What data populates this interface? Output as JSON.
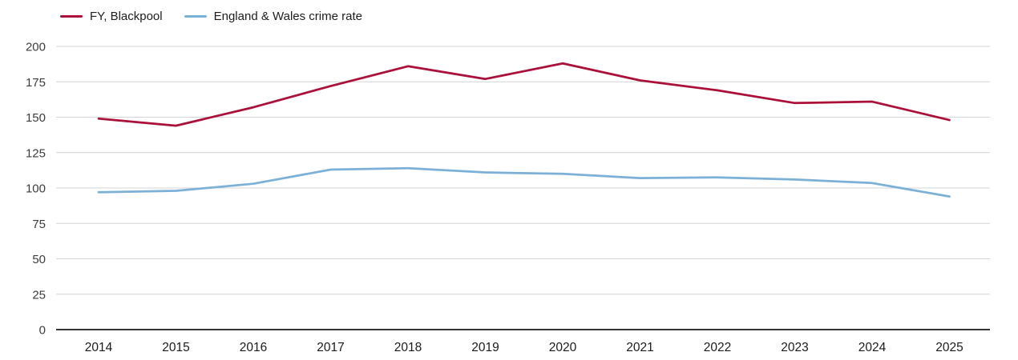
{
  "chart_data": {
    "type": "line",
    "x": [
      2014,
      2015,
      2016,
      2017,
      2018,
      2019,
      2020,
      2021,
      2022,
      2023,
      2024,
      2025
    ],
    "series": [
      {
        "name": "FY, Blackpool",
        "color": "#aa1039",
        "values": [
          149,
          144,
          157,
          172,
          186,
          177,
          188,
          176,
          169,
          160,
          161,
          148
        ]
      },
      {
        "name": "England & Wales crime rate",
        "color": "#7cb1d7",
        "values": [
          97,
          98,
          103,
          113,
          114,
          111,
          110,
          107,
          107.5,
          106,
          103.5,
          94
        ]
      }
    ],
    "title": "",
    "xlabel": "",
    "ylabel": "",
    "ylim": [
      0,
      200
    ],
    "ytick_step": 25,
    "yticks": [
      0,
      25,
      50,
      75,
      100,
      125,
      150,
      175,
      200
    ],
    "grid": true,
    "legend_position": "top-left",
    "grid_color": "#d4d4d4",
    "axis_color": "#333333",
    "tick_label_color": "#3c3c3c",
    "x_label_color": "#1a1a1a"
  }
}
